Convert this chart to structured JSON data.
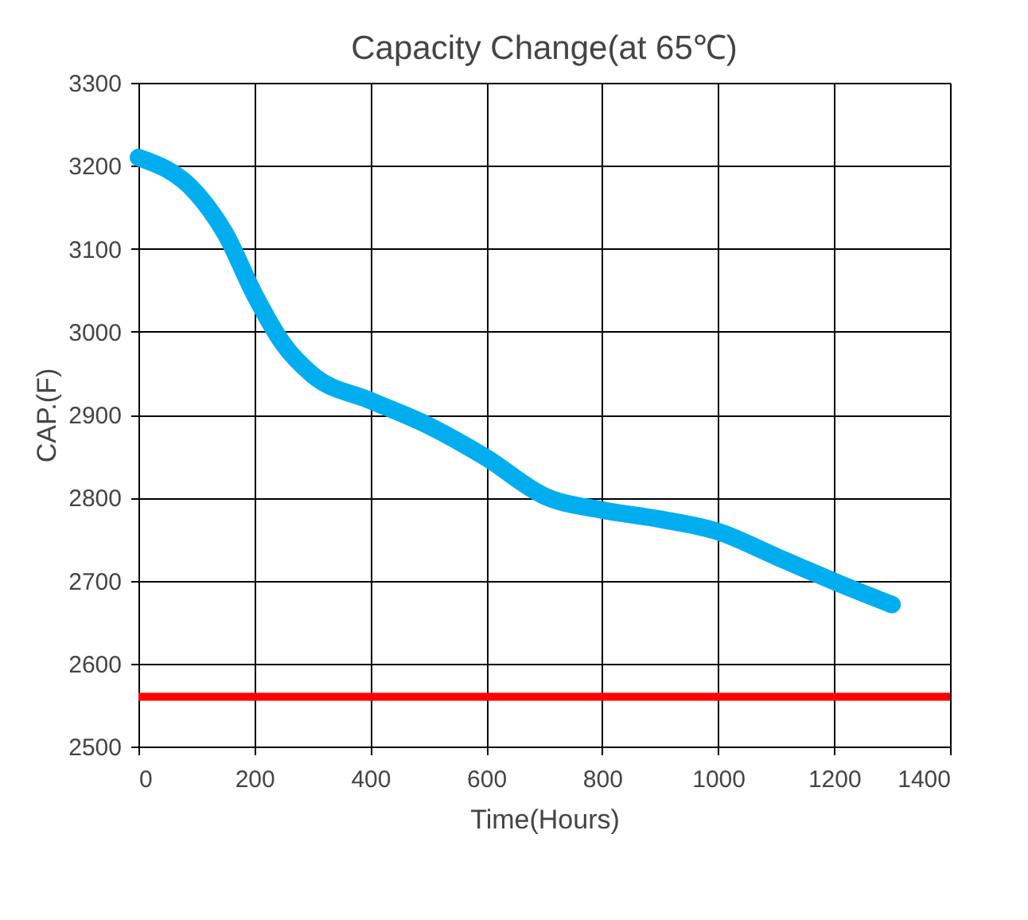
{
  "chart_data": {
    "type": "line",
    "title": "Capacity Change(at 65℃)",
    "xlabel": "Time(Hours)",
    "ylabel": "CAP.(F)",
    "x": [
      0,
      100,
      150,
      200,
      250,
      300,
      400,
      500,
      600,
      700,
      800,
      900,
      1000,
      1100,
      1200,
      1300
    ],
    "series": [
      {
        "color": "#00aeef",
        "values": [
          3210,
          3167,
          3118,
          3045,
          2985,
          2948,
          2917,
          2887,
          2848,
          2802,
          2785,
          2774,
          2759,
          2729,
          2699,
          2671
        ]
      }
    ],
    "xlim": [
      0,
      1400
    ],
    "xticks": [
      0,
      200,
      400,
      600,
      800,
      1000,
      1200,
      1400
    ],
    "ylim": [
      2500,
      3300
    ],
    "yticks": [
      2500,
      2600,
      2700,
      2800,
      2900,
      3000,
      3100,
      3200,
      3300
    ],
    "ref_lines": [
      {
        "axis": "y",
        "value": 2560,
        "color": "#ff0000"
      }
    ],
    "grid": true,
    "marker": "none",
    "line_style": "solid"
  }
}
